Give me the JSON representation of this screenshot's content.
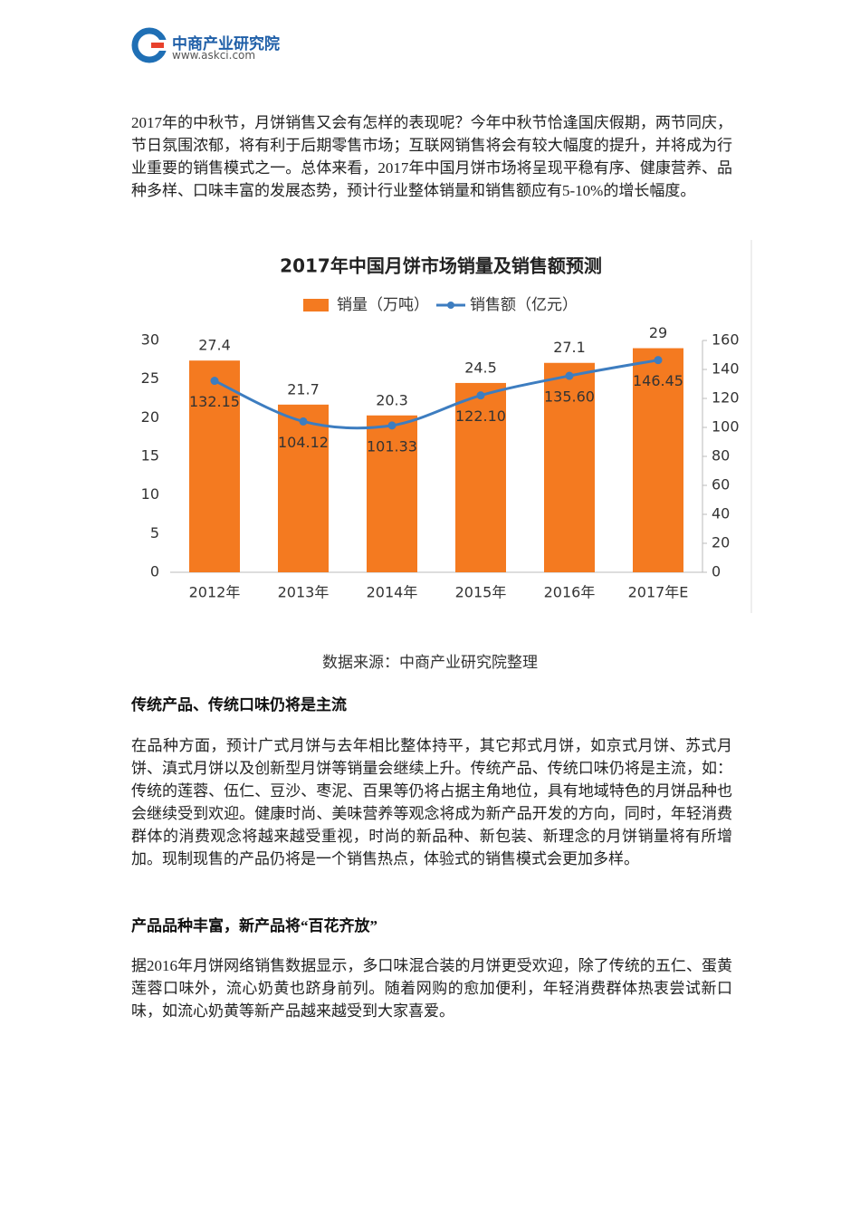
{
  "header": {
    "logo_name": "中商产业研究院",
    "logo_url": "www.askci.com"
  },
  "paragraphs": [
    "2017年的中秋节，月饼销售又会有怎样的表现呢？今年中秋节恰逢国庆假期，两节同庆，节日氛围浓郁，将有利于后期零售市场；互联网销售将会有较大幅度的提升，并将成为行业重要的销售模式之一。总体来看，2017年中国月饼市场将呈现平稳有序、健康营养、品种多样、口味丰富的发展态势，预计行业整体销量和销售额应有5-10%的增长幅度。",
    "在品种方面，预计广式月饼与去年相比整体持平，其它邦式月饼，如京式月饼、苏式月饼、滇式月饼以及创新型月饼等销量会继续上升。传统产品、传统口味仍将是主流，如：传统的莲蓉、伍仁、豆沙、枣泥、百果等仍将占据主角地位，具有地域特色的月饼品种也会继续受到欢迎。健康时尚、美味营养等观念将成为新产品开发的方向，同时，年轻消费群体的消费观念将越来越受重视，时尚的新品种、新包装、新理念的月饼销量将有所增加。现制现售的产品仍将是一个销售热点，体验式的销售模式会更加多样。",
    "据2016年月饼网络销售数据显示，多口味混合装的月饼更受欢迎，除了传统的五仁、蛋黄莲蓉口味外，流心奶黄也跻身前列。随着网购的愈加便利，年轻消费群体热衷尝试新口味，如流心奶黄等新产品越来越受到大家喜爱。"
  ],
  "caption": "数据来源：中商产业研究院整理",
  "headings": [
    "传统产品、传统口味仍将是主流",
    "产品品种丰富，新产品将“百花齐放”"
  ],
  "chart_data": {
    "type": "bar",
    "title": "2017年中国月饼市场销量及销售额预测",
    "categories": [
      "2012年",
      "2013年",
      "2014年",
      "2015年",
      "2016年",
      "2017年E"
    ],
    "series": [
      {
        "name": "销量（万吨）",
        "type": "bar",
        "color": "#f47a20",
        "values": [
          27.4,
          21.7,
          20.3,
          24.5,
          27.1,
          29
        ]
      },
      {
        "name": "销售额（亿元）",
        "type": "line",
        "axis": "y2",
        "color": "#3d7dc0",
        "values": [
          132.15,
          104.12,
          101.33,
          122.1,
          135.6,
          146.45
        ],
        "value_labels": [
          "132.15",
          "104.12",
          "101.33",
          "122.10",
          "135.60",
          "146.45"
        ]
      }
    ],
    "ylim": [
      0,
      30
    ],
    "yticks": [
      0,
      5,
      10,
      15,
      20,
      25,
      30
    ],
    "y2lim": [
      0,
      160
    ],
    "y2ticks": [
      0,
      20,
      40,
      60,
      80,
      100,
      120,
      140,
      160
    ],
    "grid": false
  }
}
